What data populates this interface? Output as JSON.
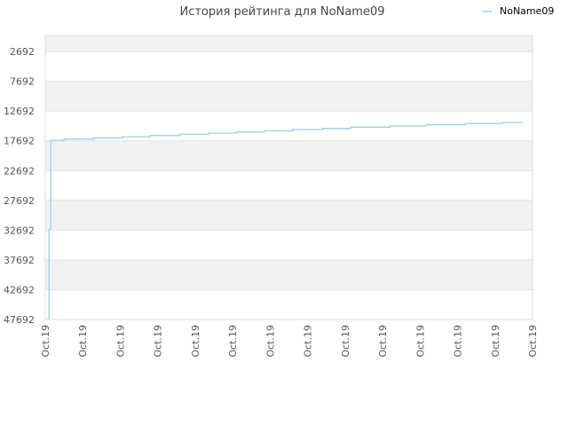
{
  "chart_data": {
    "type": "line",
    "title": "История рейтинга для NoName09",
    "xlabel": "",
    "ylabel": "",
    "y_inverted": true,
    "ylim": [
      0,
      47692
    ],
    "y_ticks": [
      2692,
      7692,
      12692,
      17692,
      22692,
      27692,
      32692,
      37692,
      42692,
      47692
    ],
    "x_ticks": [
      "Oct.19",
      "Oct.19",
      "Oct.19",
      "Oct.19",
      "Oct.19",
      "Oct.19",
      "Oct.19",
      "Oct.19",
      "Oct.19",
      "Oct.19",
      "Oct.19",
      "Oct.19",
      "Oct.19",
      "Oct.19"
    ],
    "x_range": [
      0,
      13
    ],
    "grid": true,
    "legend_position": "top-right",
    "colors": {
      "line": "#9ccdf4",
      "band_dark": "#f2f2f2",
      "band_light": "#ffffff",
      "frame": "#dddddd"
    },
    "series": [
      {
        "name": "NoName09",
        "points": [
          [
            0.1,
            47692
          ],
          [
            0.1,
            32500
          ],
          [
            0.15,
            32500
          ],
          [
            0.15,
            17600
          ],
          [
            0.5,
            17600
          ],
          [
            0.5,
            17400
          ],
          [
            1.3,
            17400
          ],
          [
            1.3,
            17200
          ],
          [
            2.05,
            17200
          ],
          [
            2.05,
            17000
          ],
          [
            2.8,
            17000
          ],
          [
            2.8,
            16800
          ],
          [
            3.6,
            16800
          ],
          [
            3.6,
            16600
          ],
          [
            4.35,
            16600
          ],
          [
            4.35,
            16400
          ],
          [
            5.1,
            16400
          ],
          [
            5.1,
            16200
          ],
          [
            5.85,
            16200
          ],
          [
            5.85,
            16000
          ],
          [
            6.6,
            16000
          ],
          [
            6.6,
            15800
          ],
          [
            7.4,
            15800
          ],
          [
            7.4,
            15600
          ],
          [
            8.15,
            15600
          ],
          [
            8.15,
            15400
          ],
          [
            9.2,
            15400
          ],
          [
            9.2,
            15200
          ],
          [
            10.15,
            15200
          ],
          [
            10.15,
            15000
          ],
          [
            11.2,
            15000
          ],
          [
            11.2,
            14800
          ],
          [
            12.2,
            14800
          ],
          [
            12.2,
            14600
          ],
          [
            12.75,
            14600
          ]
        ]
      }
    ]
  }
}
